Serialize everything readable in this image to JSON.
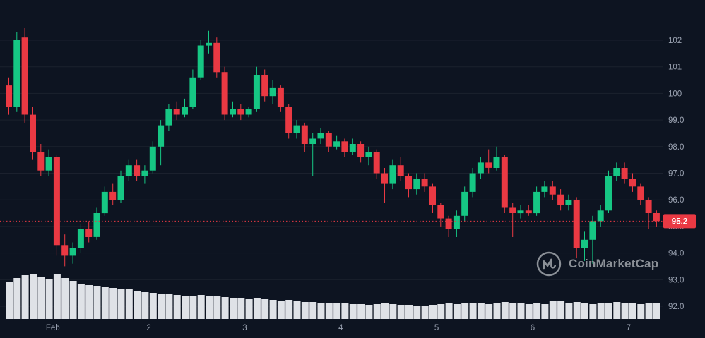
{
  "watermark": {
    "label": "CoinMarketCap"
  },
  "colors": {
    "background": "#0d1421",
    "up": "#16c784",
    "down": "#ea3943",
    "grid": "rgba(255,255,255,0.06)",
    "axis_text": "#9aa2b1",
    "volume": "#dfe2e7",
    "current_price_line": "#ea3943",
    "current_price_bg": "#ea3943",
    "current_price_text": "#ffffff",
    "watermark_text": "#8b9097"
  },
  "price_axis": {
    "current_price_label": "95.2"
  },
  "chart_data": {
    "type": "candlestick",
    "y_axis": {
      "min": 92,
      "max": 102.5,
      "ticks": [
        {
          "value": 102,
          "label": "102"
        },
        {
          "value": 101,
          "label": "101"
        },
        {
          "value": 100,
          "label": "100"
        },
        {
          "value": 99,
          "label": "99.0"
        },
        {
          "value": 98,
          "label": "98.0"
        },
        {
          "value": 97,
          "label": "97.0"
        },
        {
          "value": 96,
          "label": "96.0"
        },
        {
          "value": 95,
          "label": "95.0"
        },
        {
          "value": 94,
          "label": "94.0"
        },
        {
          "value": 93,
          "label": "93.0"
        },
        {
          "value": 92,
          "label": "92.0"
        }
      ]
    },
    "current_price": 95.2,
    "x_categories": [
      "Feb",
      "2",
      "3",
      "4",
      "5",
      "6",
      "7"
    ],
    "x_label_positions": [
      5.5,
      17.5,
      29.5,
      41.5,
      53.5,
      65.5,
      77.5
    ],
    "candles": [
      [
        100.3,
        100.6,
        99.2,
        99.5
      ],
      [
        99.5,
        102.3,
        99.3,
        102.0
      ],
      [
        102.1,
        102.45,
        98.9,
        99.2
      ],
      [
        99.2,
        99.5,
        97.5,
        97.8
      ],
      [
        97.8,
        98.1,
        96.9,
        97.1
      ],
      [
        97.1,
        97.9,
        96.9,
        97.6
      ],
      [
        97.6,
        97.7,
        93.9,
        94.3
      ],
      [
        94.3,
        94.7,
        93.5,
        93.9
      ],
      [
        93.9,
        94.4,
        93.6,
        94.2
      ],
      [
        94.2,
        95.1,
        94.0,
        94.9
      ],
      [
        94.9,
        95.2,
        94.4,
        94.6
      ],
      [
        94.6,
        95.7,
        94.5,
        95.5
      ],
      [
        95.5,
        96.5,
        95.4,
        96.3
      ],
      [
        96.3,
        96.6,
        95.8,
        96.0
      ],
      [
        96.0,
        97.1,
        95.9,
        96.9
      ],
      [
        96.9,
        97.5,
        96.7,
        97.3
      ],
      [
        97.3,
        97.5,
        96.7,
        96.9
      ],
      [
        96.9,
        97.3,
        96.6,
        97.1
      ],
      [
        97.1,
        98.2,
        97.0,
        98.0
      ],
      [
        98.0,
        99.0,
        97.3,
        98.8
      ],
      [
        98.8,
        99.6,
        98.6,
        99.4
      ],
      [
        99.4,
        99.7,
        99.0,
        99.2
      ],
      [
        99.2,
        99.8,
        99.1,
        99.5
      ],
      [
        99.5,
        100.9,
        99.4,
        100.6
      ],
      [
        100.6,
        102.0,
        100.5,
        101.8
      ],
      [
        101.8,
        102.35,
        101.5,
        101.9
      ],
      [
        101.9,
        102.1,
        100.6,
        100.8
      ],
      [
        100.8,
        101.0,
        99.0,
        99.2
      ],
      [
        99.2,
        99.7,
        99.1,
        99.4
      ],
      [
        99.4,
        99.6,
        99.0,
        99.2
      ],
      [
        99.2,
        99.5,
        99.1,
        99.4
      ],
      [
        99.4,
        101.0,
        99.3,
        100.7
      ],
      [
        100.7,
        100.9,
        99.7,
        99.9
      ],
      [
        99.9,
        100.5,
        99.6,
        100.2
      ],
      [
        100.2,
        100.3,
        99.3,
        99.5
      ],
      [
        99.5,
        99.6,
        98.3,
        98.5
      ],
      [
        98.5,
        99.0,
        98.3,
        98.8
      ],
      [
        98.8,
        98.9,
        97.8,
        98.1
      ],
      [
        98.1,
        98.5,
        96.9,
        98.3
      ],
      [
        98.3,
        98.7,
        98.1,
        98.5
      ],
      [
        98.5,
        98.6,
        97.8,
        98.0
      ],
      [
        98.0,
        98.4,
        97.9,
        98.2
      ],
      [
        98.2,
        98.3,
        97.6,
        97.8
      ],
      [
        97.8,
        98.3,
        97.7,
        98.1
      ],
      [
        98.1,
        98.2,
        97.4,
        97.6
      ],
      [
        97.6,
        98.0,
        97.3,
        97.8
      ],
      [
        97.8,
        97.9,
        96.8,
        97.0
      ],
      [
        97.0,
        97.2,
        95.9,
        96.6
      ],
      [
        96.6,
        97.5,
        96.4,
        97.3
      ],
      [
        97.3,
        97.6,
        96.7,
        96.9
      ],
      [
        96.9,
        97.0,
        96.1,
        96.4
      ],
      [
        96.4,
        97.0,
        96.2,
        96.8
      ],
      [
        96.8,
        97.0,
        96.3,
        96.5
      ],
      [
        96.5,
        96.6,
        95.5,
        95.8
      ],
      [
        95.8,
        95.9,
        95.0,
        95.3
      ],
      [
        95.3,
        95.4,
        94.6,
        94.9
      ],
      [
        94.9,
        95.6,
        94.6,
        95.4
      ],
      [
        95.4,
        96.5,
        95.2,
        96.3
      ],
      [
        96.3,
        97.2,
        96.1,
        97.0
      ],
      [
        97.0,
        97.6,
        96.8,
        97.4
      ],
      [
        97.4,
        97.9,
        97.0,
        97.2
      ],
      [
        97.2,
        98.0,
        97.1,
        97.6
      ],
      [
        97.6,
        97.7,
        95.5,
        95.7
      ],
      [
        95.7,
        95.9,
        94.6,
        95.5
      ],
      [
        95.5,
        95.8,
        95.3,
        95.6
      ],
      [
        95.6,
        95.8,
        95.4,
        95.5
      ],
      [
        95.5,
        96.5,
        95.4,
        96.3
      ],
      [
        96.3,
        96.7,
        96.1,
        96.5
      ],
      [
        96.5,
        96.7,
        96.0,
        96.2
      ],
      [
        96.2,
        96.4,
        95.6,
        95.8
      ],
      [
        95.8,
        96.2,
        95.6,
        96.0
      ],
      [
        96.0,
        96.1,
        93.8,
        94.2
      ],
      [
        94.2,
        94.8,
        93.7,
        94.5
      ],
      [
        94.5,
        95.4,
        93.6,
        95.2
      ],
      [
        95.2,
        95.8,
        95.0,
        95.6
      ],
      [
        95.6,
        97.1,
        95.5,
        96.9
      ],
      [
        96.9,
        97.4,
        96.7,
        97.2
      ],
      [
        97.2,
        97.4,
        96.6,
        96.8
      ],
      [
        96.8,
        97.0,
        96.3,
        96.5
      ],
      [
        96.5,
        96.6,
        95.8,
        96.0
      ],
      [
        96.0,
        96.1,
        94.9,
        95.5
      ],
      [
        95.5,
        95.6,
        95.0,
        95.2
      ]
    ],
    "volume": [
      52,
      58,
      62,
      64,
      60,
      57,
      63,
      58,
      54,
      50,
      48,
      46,
      45,
      44,
      43,
      42,
      40,
      38,
      37,
      36,
      35,
      34,
      33,
      33,
      34,
      33,
      32,
      31,
      30,
      29,
      28,
      29,
      28,
      27,
      26,
      27,
      25,
      24,
      24,
      23,
      23,
      22,
      22,
      21,
      21,
      20,
      21,
      22,
      21,
      20,
      20,
      19,
      19,
      20,
      21,
      22,
      21,
      22,
      23,
      22,
      21,
      22,
      24,
      23,
      22,
      21,
      22,
      21,
      26,
      25,
      23,
      24,
      22,
      21,
      22,
      23,
      24,
      23,
      22,
      21,
      22,
      23
    ]
  }
}
